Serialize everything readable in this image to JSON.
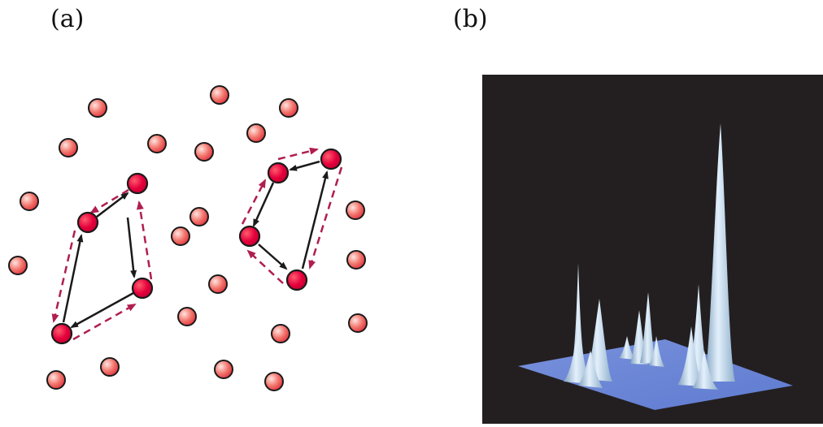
{
  "panels": {
    "a": {
      "label": "(a)"
    },
    "b": {
      "label": "(b)"
    }
  },
  "colors": {
    "particle_fill": "#e83a48",
    "particle_highlight": "#ffd9d4",
    "loop_particle_fill": "#e5003c",
    "solid_arrow": "#1a1a1a",
    "dashed_arrow": "#b01e4f",
    "surface_background": "#231f20",
    "surface_plane": "#6b86d6",
    "surface_peaks": "#b9d6ee"
  },
  "icons": {
    "particle": "sphere",
    "arrow": "arrowhead"
  }
}
